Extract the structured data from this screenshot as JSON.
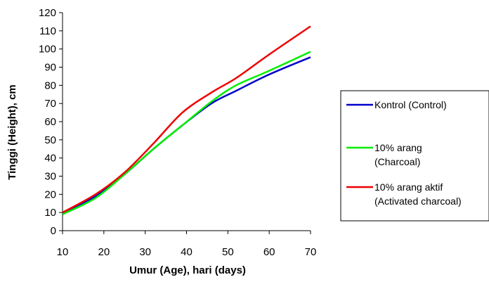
{
  "chart_data": {
    "type": "line",
    "xlabel": "Umur (Age), hari (days)",
    "ylabel": "Tinggi (Height), cm",
    "xlim": [
      10,
      70
    ],
    "ylim": [
      0,
      120
    ],
    "x_ticks": [
      10,
      20,
      30,
      40,
      50,
      60,
      70
    ],
    "y_ticks": [
      0,
      10,
      20,
      30,
      40,
      50,
      60,
      70,
      80,
      90,
      100,
      110,
      120
    ],
    "grid": false,
    "legend_position": "right",
    "series": [
      {
        "name": "Kontrol (Control)",
        "legend_lines": [
          "Kontrol (Control)"
        ],
        "color": "#0000cc",
        "points": [
          [
            10,
            9
          ],
          [
            18,
            19
          ],
          [
            25,
            31
          ],
          [
            32,
            45
          ],
          [
            39,
            58
          ],
          [
            46,
            70
          ],
          [
            52,
            77
          ],
          [
            60,
            86
          ],
          [
            70,
            95.5
          ]
        ]
      },
      {
        "name": "10% arang (Charcoal)",
        "legend_lines": [
          "10% arang",
          "(Charcoal)"
        ],
        "color": "#00ee00",
        "points": [
          [
            10,
            9
          ],
          [
            18,
            18
          ],
          [
            25,
            31
          ],
          [
            32,
            45
          ],
          [
            39,
            58
          ],
          [
            46,
            71
          ],
          [
            52,
            80
          ],
          [
            60,
            88
          ],
          [
            70,
            98.5
          ]
        ]
      },
      {
        "name": "10% arang aktif (Activated charcoal)",
        "legend_lines": [
          "10% arang aktif",
          "(Activated charcoal)"
        ],
        "color": "#ee0000",
        "points": [
          [
            10,
            10
          ],
          [
            18,
            20
          ],
          [
            25,
            32
          ],
          [
            32,
            48
          ],
          [
            39,
            65
          ],
          [
            46,
            76
          ],
          [
            52,
            84
          ],
          [
            60,
            97
          ],
          [
            70,
            112.5
          ]
        ]
      }
    ]
  }
}
